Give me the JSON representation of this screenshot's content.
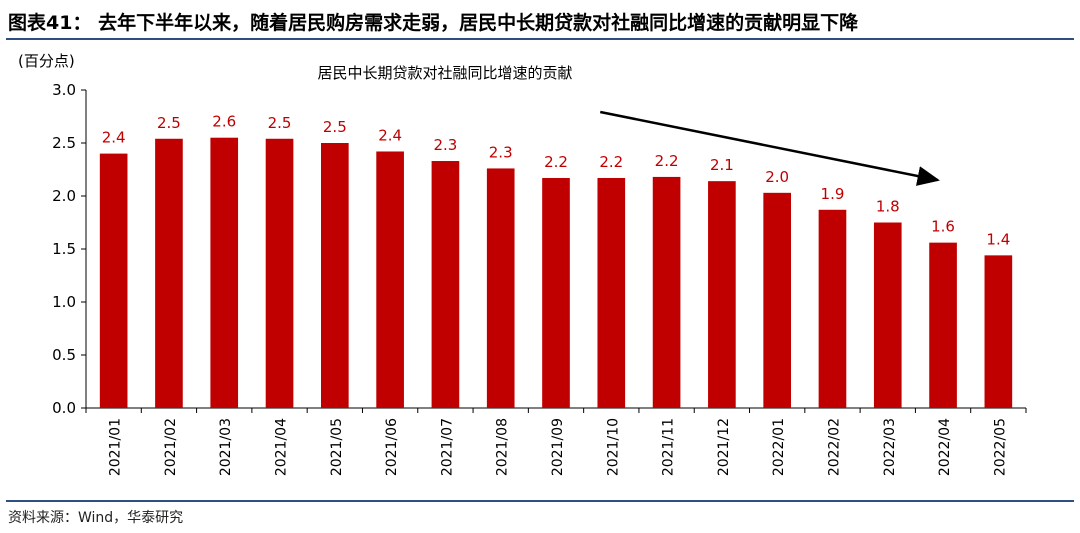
{
  "figure": {
    "label": "图表41：",
    "title": "去年下半年以来，随着居民购房需求走弱，居民中长期贷款对社融同比增速的贡献明显下降",
    "source": "资料来源：Wind，华泰研究"
  },
  "colors": {
    "bar": "#c00000",
    "label": "#c00000",
    "rule": "#2f4f7f"
  },
  "chart_data": {
    "type": "bar",
    "title": "居民中长期贷款对社融同比增速的贡献",
    "unit_label": "(百分点)",
    "categories": [
      "2021/01",
      "2021/02",
      "2021/03",
      "2021/04",
      "2021/05",
      "2021/06",
      "2021/07",
      "2021/08",
      "2021/09",
      "2021/10",
      "2021/11",
      "2021/12",
      "2022/01",
      "2022/02",
      "2022/03",
      "2022/04",
      "2022/05"
    ],
    "values": [
      2.4,
      2.54,
      2.55,
      2.54,
      2.5,
      2.42,
      2.33,
      2.26,
      2.17,
      2.17,
      2.18,
      2.14,
      2.03,
      1.87,
      1.75,
      1.56,
      1.44
    ],
    "data_labels": [
      "2.4",
      "2.5",
      "2.6",
      "2.5",
      "2.5",
      "2.4",
      "2.3",
      "2.3",
      "2.2",
      "2.2",
      "2.2",
      "2.1",
      "2.0",
      "1.9",
      "1.8",
      "1.6",
      "1.4"
    ],
    "ylim": [
      0,
      3.0
    ],
    "yticks": [
      "0.0",
      "0.5",
      "1.0",
      "1.5",
      "2.0",
      "2.5",
      "3.0"
    ],
    "grid": false,
    "annotation": "downward trend arrow from 2021/10 to 2022/04"
  }
}
